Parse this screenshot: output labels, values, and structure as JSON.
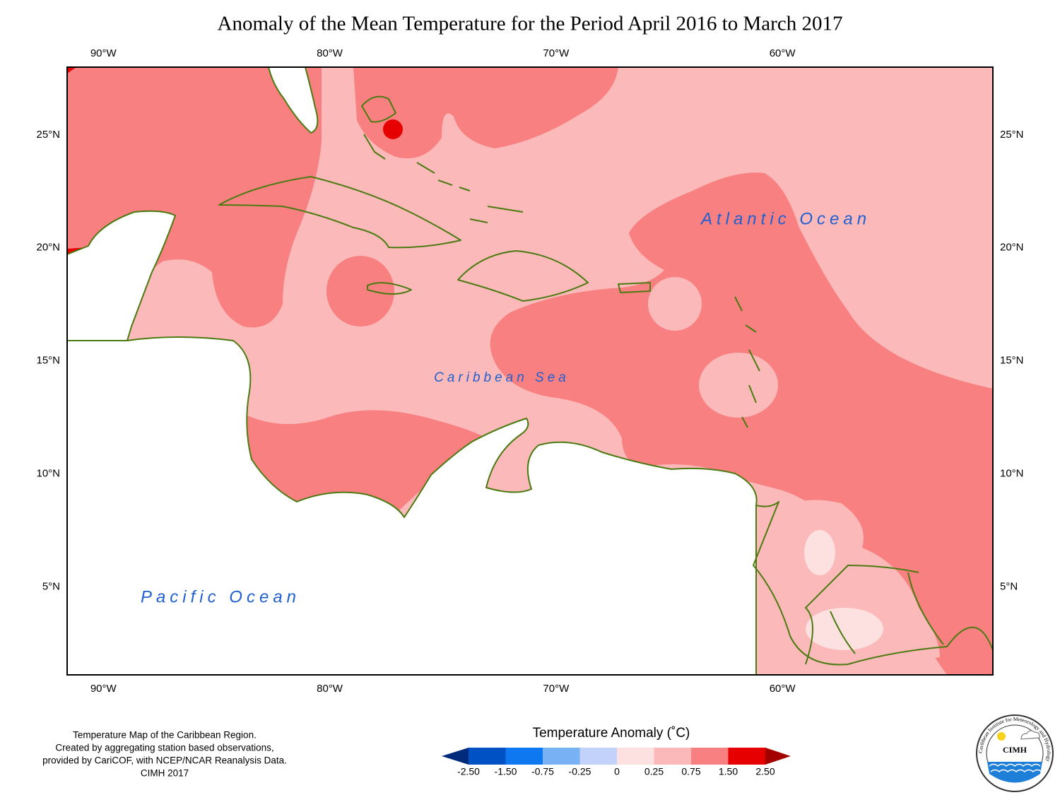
{
  "title": "Anomaly of the Mean Temperature for the Period April 2016 to March 2017",
  "map": {
    "xlim": [
      -91.6,
      -50.7
    ],
    "ylim": [
      1.1,
      28
    ],
    "lon_ticks": [
      {
        "value": -90,
        "label": "90°W"
      },
      {
        "value": -80,
        "label": "80°W"
      },
      {
        "value": -70,
        "label": "70°W"
      },
      {
        "value": -60,
        "label": "60°W"
      }
    ],
    "lat_ticks": [
      {
        "value": 25,
        "label": "25°N"
      },
      {
        "value": 20,
        "label": "20°N"
      },
      {
        "value": 15,
        "label": "15°N"
      },
      {
        "value": 10,
        "label": "10°N"
      },
      {
        "value": 5,
        "label": "5°N"
      }
    ],
    "ocean_labels": [
      "Atlantic Ocean",
      "Caribbean Sea",
      "Pacific Ocean"
    ]
  },
  "legend": {
    "title": "Temperature Anomaly (˚C)",
    "ticks": [
      {
        "value": -2.5,
        "label": "-2.50"
      },
      {
        "value": -1.5,
        "label": "-1.50"
      },
      {
        "value": -0.75,
        "label": "-0.75"
      },
      {
        "value": -0.25,
        "label": "-0.25"
      },
      0,
      {
        "value": 0.25,
        "label": "0.25"
      },
      {
        "value": 0.75,
        "label": "0.75"
      },
      {
        "value": 1.5,
        "label": "1.50"
      },
      {
        "value": 2.5,
        "label": "2.50"
      }
    ],
    "colors": [
      "#002a7a",
      "#0052c4",
      "#0d78f0",
      "#78b2f4",
      "#c2d2fa",
      "#fde0e0",
      "#fbb9b9",
      "#f88080",
      "#e60000",
      "#a30000"
    ]
  },
  "notes": [
    "Temperature Map of the Caribbean Region.",
    "Created by aggregating station based observations,",
    "provided by CariCOF, with NCEP/NCAR Reanalysis Data.",
    "CIMH 2017"
  ],
  "logo": {
    "name": "CIMH",
    "text": "Caribbean Institute for Meteorology and Hydrology"
  }
}
